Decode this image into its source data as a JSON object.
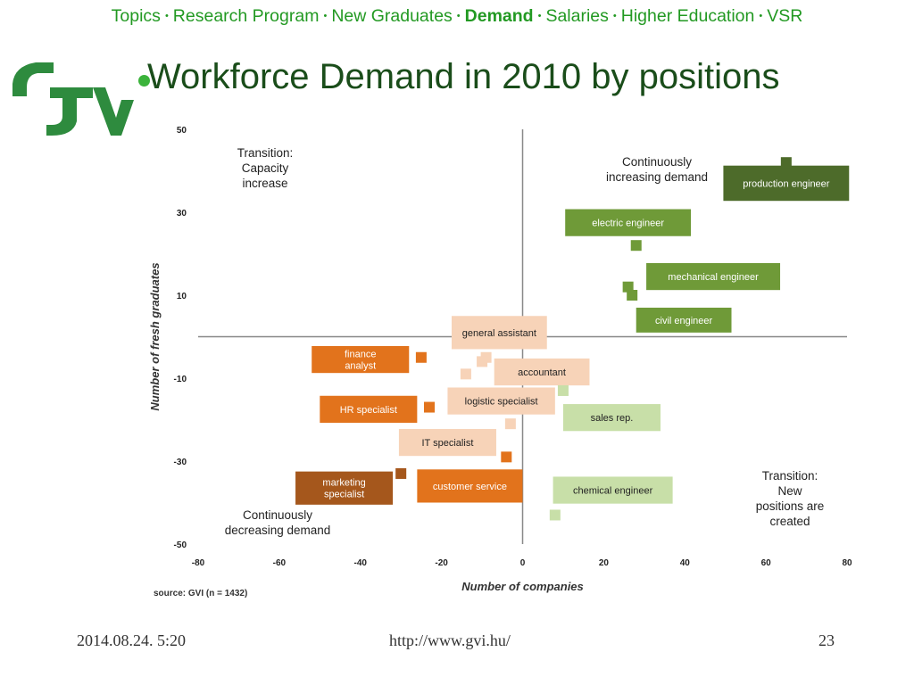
{
  "nav": {
    "items": [
      "Topics",
      "Research Program",
      "New Graduates",
      "Demand",
      "Salaries",
      "Higher Education",
      "VSR"
    ],
    "active_index": 3,
    "separator": "•"
  },
  "logo": {
    "text": "GVI",
    "color": "#2e8b3e"
  },
  "title": "Workforce Demand in 2010 by positions",
  "footer": {
    "date": "2014.08.24. 5:20",
    "url": "http://www.gvi.hu/",
    "page": "23"
  },
  "colors": {
    "dark_green": "#4d6b2a",
    "mid_green": "#6f9a38",
    "light_green": "#c8dfa8",
    "orange": "#e2731c",
    "dark_orange": "#a5571c",
    "peach": "#f7d3b8",
    "axis": "#888888",
    "text": "#222222"
  },
  "chart_data": {
    "type": "scatter",
    "xlabel": "Number of companies",
    "ylabel": "Number of fresh graduates",
    "xlim": [
      -80,
      80
    ],
    "ylim": [
      -50,
      50
    ],
    "xticks": [
      -80,
      -60,
      -40,
      -20,
      0,
      20,
      40,
      60,
      80
    ],
    "yticks": [
      50,
      30,
      10,
      -10,
      -30,
      -50
    ],
    "grid": false,
    "source": "source: GVI (n = 1432)",
    "quadrant_labels": [
      {
        "text": [
          "Transition:",
          "Capacity",
          "increase"
        ],
        "quadrant": "top-left"
      },
      {
        "text": [
          "Continuously",
          "increasing demand"
        ],
        "quadrant": "top-right"
      },
      {
        "text": [
          "Continuously",
          "decreasing demand"
        ],
        "quadrant": "bottom-left"
      },
      {
        "text": [
          "Transition:",
          "New",
          "positions are",
          "created"
        ],
        "quadrant": "bottom-right"
      }
    ],
    "points": [
      {
        "x": 65,
        "y": 42,
        "color": "dark_green"
      },
      {
        "x": 28,
        "y": 22,
        "color": "mid_green"
      },
      {
        "x": 26,
        "y": 12,
        "color": "mid_green"
      },
      {
        "x": 27,
        "y": 10,
        "color": "mid_green"
      },
      {
        "x": -25,
        "y": -5,
        "color": "orange"
      },
      {
        "x": -9,
        "y": -5,
        "color": "peach"
      },
      {
        "x": -10,
        "y": -6,
        "color": "peach"
      },
      {
        "x": -14,
        "y": -9,
        "color": "peach"
      },
      {
        "x": 10,
        "y": -13,
        "color": "light_green"
      },
      {
        "x": -23,
        "y": -17,
        "color": "orange"
      },
      {
        "x": -3,
        "y": -21,
        "color": "peach"
      },
      {
        "x": -4,
        "y": -29,
        "color": "orange"
      },
      {
        "x": -30,
        "y": -33,
        "color": "dark_orange"
      },
      {
        "x": 8,
        "y": -43,
        "color": "light_green"
      }
    ],
    "labels": [
      {
        "lines": [
          "production engineer"
        ],
        "x0": 49.5,
        "x1": 80.5,
        "y": 37,
        "h": 8.5,
        "color": "dark_green",
        "text_color": "#ffffff"
      },
      {
        "lines": [
          "electric engineer"
        ],
        "x0": 10.5,
        "x1": 41.5,
        "y": 27.5,
        "h": 6.5,
        "color": "mid_green",
        "text_color": "#ffffff"
      },
      {
        "lines": [
          "mechanical engineer"
        ],
        "x0": 30.5,
        "x1": 63.5,
        "y": 14.5,
        "h": 6.5,
        "color": "mid_green",
        "text_color": "#ffffff"
      },
      {
        "lines": [
          "civil engineer"
        ],
        "x0": 28,
        "x1": 51.5,
        "y": 4,
        "h": 6,
        "color": "mid_green",
        "text_color": "#ffffff"
      },
      {
        "lines": [
          "general assistant"
        ],
        "x0": -17.5,
        "x1": 6,
        "y": 1,
        "h": 8,
        "color": "peach",
        "text_color": "#222222"
      },
      {
        "lines": [
          "finance",
          "analyst"
        ],
        "x0": -52,
        "x1": -28,
        "y": -5.5,
        "h": 6.5,
        "color": "orange",
        "text_color": "#ffffff"
      },
      {
        "lines": [
          "accountant"
        ],
        "x0": -7,
        "x1": 16.5,
        "y": -8.5,
        "h": 6.5,
        "color": "peach",
        "text_color": "#222222"
      },
      {
        "lines": [
          "logistic specialist"
        ],
        "x0": -18.5,
        "x1": 8,
        "y": -15.5,
        "h": 6.5,
        "color": "peach",
        "text_color": "#222222"
      },
      {
        "lines": [
          "HR specialist"
        ],
        "x0": -50,
        "x1": -26,
        "y": -17.5,
        "h": 6.5,
        "color": "orange",
        "text_color": "#ffffff"
      },
      {
        "lines": [
          "sales rep."
        ],
        "x0": 10,
        "x1": 34,
        "y": -19.5,
        "h": 6.5,
        "color": "light_green",
        "text_color": "#222222"
      },
      {
        "lines": [
          "IT specialist"
        ],
        "x0": -30.5,
        "x1": -6.5,
        "y": -25.5,
        "h": 6.5,
        "color": "peach",
        "text_color": "#222222"
      },
      {
        "lines": [
          "marketing",
          "specialist"
        ],
        "x0": -56,
        "x1": -32,
        "y": -36.5,
        "h": 8,
        "color": "dark_orange",
        "text_color": "#ffffff"
      },
      {
        "lines": [
          "customer service"
        ],
        "x0": -26,
        "x1": 0,
        "y": -36,
        "h": 8,
        "color": "orange",
        "text_color": "#ffffff"
      },
      {
        "lines": [
          "chemical engineer"
        ],
        "x0": 7.5,
        "x1": 37,
        "y": -37,
        "h": 6.5,
        "color": "light_green",
        "text_color": "#222222"
      }
    ]
  }
}
